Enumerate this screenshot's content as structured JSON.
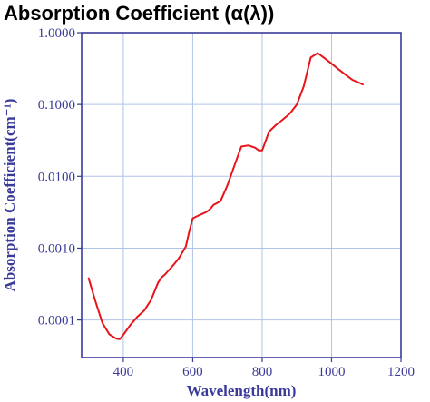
{
  "chart_data": {
    "type": "line",
    "title": "Absorption Coefficient (α(λ))",
    "xlabel": "Wavelength(nm)",
    "ylabel": "Absorption Coefficient(cm⁻¹)",
    "x_scale": "linear",
    "y_scale": "log",
    "xlim": [
      280,
      1200
    ],
    "ylim": [
      3e-05,
      1.0
    ],
    "x_ticks": [
      400,
      600,
      800,
      1000,
      1200
    ],
    "x_tick_labels": [
      "400",
      "600",
      "800",
      "1000",
      "1200"
    ],
    "y_ticks": [
      0.0001,
      0.001,
      0.01,
      0.1,
      1.0
    ],
    "y_tick_labels": [
      "0.0001",
      "0.0010",
      "0.0100",
      "0.1000",
      "1.0000"
    ],
    "grid": true,
    "colors": {
      "series": "#e8141a",
      "axis_text": "#3a3a9a",
      "grid": "#b0c4e6",
      "frame": "#3a3a9a"
    },
    "series": [
      {
        "x": [
          300,
          320,
          340,
          360,
          380,
          390,
          400,
          420,
          440,
          460,
          480,
          500,
          510,
          520,
          540,
          560,
          580,
          590,
          600,
          620,
          640,
          650,
          660,
          680,
          700,
          720,
          740,
          760,
          780,
          790,
          800,
          820,
          840,
          860,
          880,
          900,
          920,
          940,
          960,
          980,
          1000,
          1020,
          1040,
          1060,
          1090
        ],
        "y": [
          0.00038,
          0.00018,
          9e-05,
          6.3e-05,
          5.5e-05,
          5.4e-05,
          6.2e-05,
          8.5e-05,
          0.00011,
          0.000135,
          0.00019,
          0.00033,
          0.00039,
          0.00043,
          0.00055,
          0.00072,
          0.00105,
          0.0017,
          0.0026,
          0.0029,
          0.0032,
          0.0035,
          0.004,
          0.0045,
          0.0075,
          0.014,
          0.026,
          0.027,
          0.025,
          0.023,
          0.023,
          0.042,
          0.052,
          0.062,
          0.075,
          0.1,
          0.18,
          0.45,
          0.52,
          0.44,
          0.37,
          0.31,
          0.26,
          0.22,
          0.19
        ]
      }
    ]
  }
}
